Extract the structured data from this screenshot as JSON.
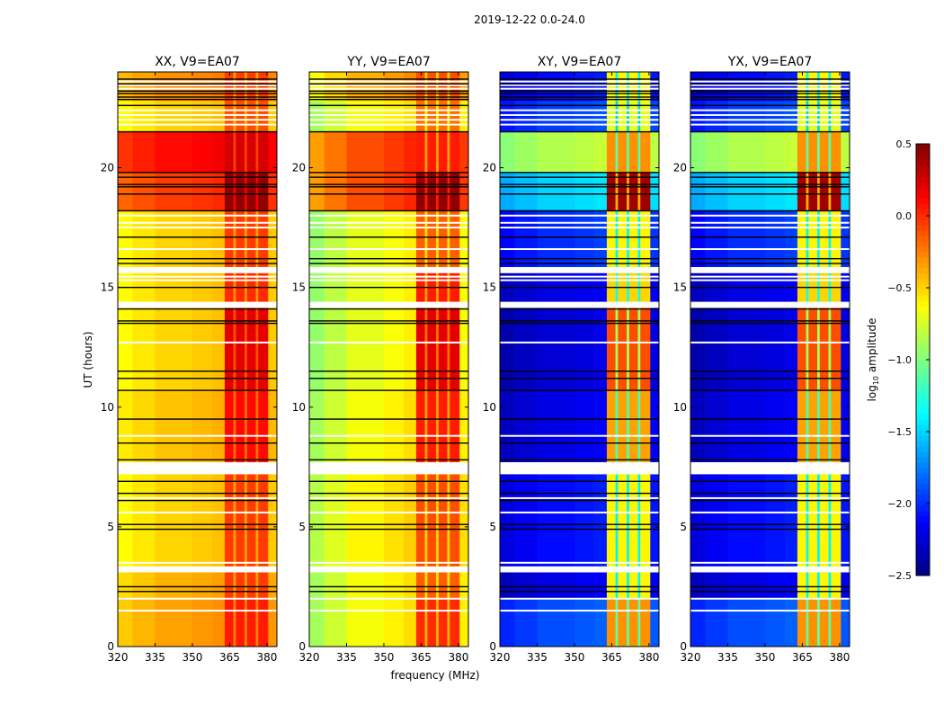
{
  "chart_data": {
    "type": "heatmap",
    "title": "2019-12-22 0.0-24.0",
    "xlabel": "frequency (MHz)",
    "ylabel": "UT (hours)",
    "xlim": [
      320,
      384
    ],
    "ylim": [
      0,
      24
    ],
    "xticks": [
      320,
      335,
      350,
      365,
      380
    ],
    "yticks": [
      0,
      5,
      10,
      15,
      20
    ],
    "colormap": "jet",
    "colorbar": {
      "vmin": -2.5,
      "vmax": 0.5,
      "ticks": [
        "0.5",
        "0.0",
        "−0.5",
        "−1.0",
        "−1.5",
        "−2.0",
        "−2.5"
      ],
      "tick_values": [
        0.5,
        0.0,
        -0.5,
        -1.0,
        -1.5,
        -2.0,
        -2.5
      ],
      "label_prefix": "log",
      "label_sub": "10",
      "label_suffix": " amplitude"
    },
    "freq_bins": [
      {
        "f0": 320,
        "f1": 326,
        "kind": "bg",
        "offset": -0.12
      },
      {
        "f0": 326,
        "f1": 335,
        "kind": "bg",
        "offset": -0.06
      },
      {
        "f0": 335,
        "f1": 350,
        "kind": "bg",
        "offset": 0
      },
      {
        "f0": 350,
        "f1": 358,
        "kind": "bg",
        "offset": 0.03
      },
      {
        "f0": 358,
        "f1": 363,
        "kind": "bg",
        "offset": 0.06
      },
      {
        "f0": 363,
        "f1": 366.5,
        "kind": "col"
      },
      {
        "f0": 366.5,
        "f1": 367.5,
        "kind": "gap"
      },
      {
        "f0": 367.5,
        "f1": 371,
        "kind": "col"
      },
      {
        "f0": 371,
        "f1": 372,
        "kind": "gap"
      },
      {
        "f0": 372,
        "f1": 375.5,
        "kind": "col"
      },
      {
        "f0": 375.5,
        "f1": 376.5,
        "kind": "gap"
      },
      {
        "f0": 376.5,
        "f1": 380.5,
        "kind": "col"
      },
      {
        "f0": 380.5,
        "f1": 384,
        "kind": "bg",
        "offset": 0.03
      }
    ],
    "flagged_hours": [
      [
        3.1,
        3.35
      ],
      [
        7.2,
        7.7
      ],
      [
        14.15,
        14.4
      ],
      [
        15.6,
        15.85
      ]
    ],
    "white_lines_hours": [
      1.5,
      2.0,
      3.5,
      5.6,
      6.2,
      8.8,
      12.7,
      15.3,
      15.45,
      16.6,
      17.5,
      17.7,
      18.0,
      21.8,
      22.0,
      22.2,
      22.4,
      23.3,
      23.45,
      23.6
    ],
    "black_lines_hours": [
      2.3,
      2.5,
      4.9,
      5.1,
      6.1,
      6.4,
      6.9,
      7.8,
      8.5,
      9.5,
      10.7,
      11.2,
      11.5,
      13.5,
      13.6,
      14.1,
      15.0,
      16.0,
      16.2,
      17.1,
      18.2,
      18.9,
      19.2,
      19.3,
      19.6,
      19.8,
      21.5,
      22.6,
      22.85,
      22.95,
      23.1,
      23.2,
      23.5,
      23.7
    ],
    "panels": [
      {
        "title": "XX, V9=EA07",
        "gap_drop": 0.3,
        "segments": [
          [
            0,
            2,
            -0.35,
            0.05
          ],
          [
            2,
            3.1,
            -0.4,
            -0.05
          ],
          [
            3.35,
            7.2,
            -0.5,
            -0.05
          ],
          [
            7.7,
            10.7,
            -0.45,
            0.1
          ],
          [
            10.7,
            14.15,
            -0.5,
            0.2
          ],
          [
            14.4,
            15.6,
            -0.5,
            0.0
          ],
          [
            15.85,
            18.2,
            -0.5,
            -0.05
          ],
          [
            18.2,
            19.8,
            -0.05,
            0.45
          ],
          [
            19.8,
            21.5,
            0.1,
            0.25
          ],
          [
            21.5,
            22.8,
            -0.5,
            -0.1
          ],
          [
            22.8,
            24,
            -0.3,
            -0.05
          ]
        ]
      },
      {
        "title": "YY, V9=EA07",
        "gap_drop": 0.4,
        "segments": [
          [
            0,
            2,
            -0.65,
            0.0
          ],
          [
            2,
            3.1,
            -0.65,
            -0.15
          ],
          [
            3.35,
            7.2,
            -0.6,
            -0.1
          ],
          [
            7.7,
            10.7,
            -0.65,
            0.05
          ],
          [
            10.7,
            14.15,
            -0.7,
            0.2
          ],
          [
            14.4,
            15.6,
            -0.7,
            0.05
          ],
          [
            15.85,
            18.2,
            -0.7,
            -0.15
          ],
          [
            18.2,
            19.8,
            -0.1,
            0.45
          ],
          [
            19.8,
            21.5,
            -0.1,
            0.05
          ],
          [
            21.5,
            22.8,
            -0.65,
            -0.2
          ],
          [
            22.8,
            24,
            -0.4,
            -0.1
          ]
        ]
      },
      {
        "title": "XY, V9=EA07",
        "gap_drop": 0.8,
        "segments": [
          [
            0,
            2,
            -1.9,
            -0.3
          ],
          [
            2,
            3.1,
            -2.2,
            -0.6
          ],
          [
            3.35,
            7.2,
            -2.1,
            -0.6
          ],
          [
            7.7,
            10.7,
            -2.2,
            -0.35
          ],
          [
            10.7,
            14.15,
            -2.25,
            -0.1
          ],
          [
            14.4,
            15.6,
            -2.2,
            -0.5
          ],
          [
            15.85,
            18.2,
            -2.0,
            -0.6
          ],
          [
            18.2,
            19.8,
            -1.5,
            0.4
          ],
          [
            19.8,
            21.5,
            -0.85,
            -0.3
          ],
          [
            21.5,
            22.8,
            -1.95,
            -0.7
          ],
          [
            22.8,
            24,
            -2.1,
            -0.6
          ]
        ]
      },
      {
        "title": "YX, V9=EA07",
        "gap_drop": 0.8,
        "segments": [
          [
            0,
            2,
            -1.9,
            -0.3
          ],
          [
            2,
            3.1,
            -2.2,
            -0.6
          ],
          [
            3.35,
            7.2,
            -2.1,
            -0.6
          ],
          [
            7.7,
            10.7,
            -2.2,
            -0.35
          ],
          [
            10.7,
            14.15,
            -2.25,
            -0.1
          ],
          [
            14.4,
            15.6,
            -2.2,
            -0.5
          ],
          [
            15.85,
            18.2,
            -2.0,
            -0.6
          ],
          [
            18.2,
            19.8,
            -1.5,
            0.4
          ],
          [
            19.8,
            21.5,
            -0.85,
            -0.3
          ],
          [
            21.5,
            22.8,
            -1.95,
            -0.7
          ],
          [
            22.8,
            24,
            -2.1,
            -0.6
          ]
        ]
      }
    ]
  }
}
